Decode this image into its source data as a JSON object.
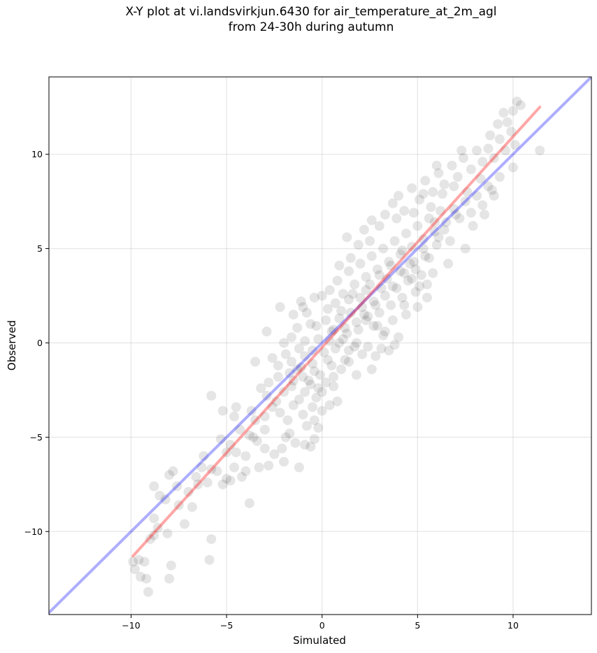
{
  "chart_data": {
    "type": "scatter",
    "title_line1": "X-Y plot at vi.landsvirkjun.6430 for air_temperature_at_2m_agl",
    "title_line2": "from 24-30h during autumn",
    "xlabel": "Simulated",
    "ylabel": "Observed",
    "xlim": [
      -14.3,
      14.1
    ],
    "ylim": [
      -14.4,
      14.1
    ],
    "x_ticks": [
      -10,
      -5,
      0,
      5,
      10
    ],
    "y_ticks": [
      -10,
      -5,
      0,
      5,
      10
    ],
    "x_tick_labels": [
      "−10",
      "−5",
      "0",
      "5",
      "10"
    ],
    "y_tick_labels": [
      "−10",
      "−5",
      "0",
      "5",
      "10"
    ],
    "grid": true,
    "identity_line": {
      "color": "#0000ff",
      "x": [
        -14.3,
        14.1
      ],
      "y": [
        -14.3,
        14.1
      ]
    },
    "fit_line": {
      "color": "#ff0000",
      "x": [
        -9.9,
        11.4
      ],
      "y": [
        -11.3,
        12.5
      ]
    },
    "points_color": "#000000",
    "points_alpha": 0.1,
    "points": [
      [
        -9.8,
        -12.0
      ],
      [
        -9.5,
        -12.4
      ],
      [
        -9.3,
        -11.6
      ],
      [
        -9.1,
        -13.2
      ],
      [
        -9.6,
        -11.5
      ],
      [
        -9.0,
        -10.4
      ],
      [
        -8.8,
        -10.2
      ],
      [
        -8.6,
        -9.8
      ],
      [
        -8.8,
        -9.3
      ],
      [
        -8.8,
        -7.6
      ],
      [
        -8.5,
        -8.1
      ],
      [
        -8.2,
        -8.3
      ],
      [
        -8.0,
        -7.0
      ],
      [
        -7.8,
        -6.8
      ],
      [
        -7.6,
        -7.6
      ],
      [
        -7.5,
        -8.6
      ],
      [
        -7.2,
        -9.6
      ],
      [
        -7.9,
        -11.8
      ],
      [
        -8.1,
        -10.1
      ],
      [
        -8.0,
        -12.5
      ],
      [
        -9.9,
        -11.6
      ],
      [
        -9.2,
        -12.5
      ],
      [
        -6.8,
        -8.7
      ],
      [
        -6.6,
        -7.1
      ],
      [
        -6.5,
        -7.5
      ],
      [
        -6.0,
        -7.4
      ],
      [
        -5.8,
        -6.7
      ],
      [
        -6.2,
        -6.0
      ],
      [
        -5.8,
        -10.4
      ],
      [
        -5.9,
        -11.5
      ],
      [
        -5.5,
        -6.8
      ],
      [
        -5.2,
        -7.5
      ],
      [
        -5.0,
        -7.2
      ],
      [
        -4.8,
        -7.3
      ],
      [
        -4.6,
        -6.6
      ],
      [
        -4.2,
        -7.1
      ],
      [
        -3.8,
        -8.5
      ],
      [
        -4.0,
        -6.0
      ],
      [
        -4.5,
        -5.8
      ],
      [
        -4.8,
        -5.4
      ],
      [
        -5.3,
        -5.1
      ],
      [
        -5.0,
        -5.8
      ],
      [
        -5.2,
        -3.6
      ],
      [
        -4.6,
        -3.9
      ],
      [
        -4.3,
        -4.6
      ],
      [
        -3.8,
        -4.9
      ],
      [
        -3.4,
        -5.2
      ],
      [
        -3.0,
        -5.6
      ],
      [
        -3.3,
        -6.6
      ],
      [
        -2.8,
        -6.5
      ],
      [
        -2.5,
        -5.9
      ],
      [
        -2.1,
        -5.6
      ],
      [
        -2.0,
        -6.3
      ],
      [
        -1.7,
        -4.8
      ],
      [
        -1.4,
        -5.3
      ],
      [
        -1.2,
        -6.6
      ],
      [
        -0.9,
        -5.4
      ],
      [
        -0.6,
        -5.5
      ],
      [
        -0.4,
        -5.1
      ],
      [
        -0.2,
        -4.5
      ],
      [
        -5.8,
        -2.8
      ],
      [
        -3.7,
        -3.6
      ],
      [
        -4.5,
        -3.4
      ],
      [
        -3.5,
        -4.1
      ],
      [
        -3.0,
        -3.9
      ],
      [
        -2.6,
        -3.4
      ],
      [
        -2.2,
        -3.7
      ],
      [
        -1.8,
        -4.1
      ],
      [
        -1.5,
        -3.3
      ],
      [
        -1.0,
        -3.8
      ],
      [
        -0.8,
        -4.4
      ],
      [
        -0.4,
        -4.1
      ],
      [
        0.0,
        -3.6
      ],
      [
        0.4,
        -3.3
      ],
      [
        0.8,
        -3.1
      ],
      [
        0.0,
        -2.6
      ],
      [
        -0.3,
        -2.9
      ],
      [
        -0.6,
        -2.2
      ],
      [
        -0.9,
        -2.6
      ],
      [
        -1.2,
        -3.0
      ],
      [
        -1.6,
        -2.3
      ],
      [
        -2.0,
        -2.6
      ],
      [
        -2.3,
        -1.8
      ],
      [
        -2.8,
        -2.1
      ],
      [
        -3.2,
        -2.4
      ],
      [
        -3.5,
        -1.0
      ],
      [
        -2.6,
        -0.8
      ],
      [
        -2.3,
        -1.2
      ],
      [
        -1.9,
        -0.6
      ],
      [
        -1.6,
        -1.0
      ],
      [
        -1.3,
        -1.4
      ],
      [
        -1.0,
        -1.8
      ],
      [
        -0.7,
        -2.0
      ],
      [
        -0.4,
        -1.5
      ],
      [
        -0.1,
        -1.7
      ],
      [
        0.2,
        -2.1
      ],
      [
        0.6,
        -1.8
      ],
      [
        1.0,
        -1.4
      ],
      [
        1.4,
        -1.0
      ],
      [
        1.8,
        -1.7
      ],
      [
        -2.0,
        0.0
      ],
      [
        -1.6,
        0.3
      ],
      [
        -1.2,
        -0.3
      ],
      [
        -0.9,
        0.1
      ],
      [
        -0.5,
        -0.4
      ],
      [
        -0.2,
        0.2
      ],
      [
        0.1,
        -0.5
      ],
      [
        0.4,
        0.1
      ],
      [
        0.7,
        -0.3
      ],
      [
        1.1,
        0.2
      ],
      [
        1.4,
        -0.4
      ],
      [
        1.8,
        0.0
      ],
      [
        2.1,
        -0.6
      ],
      [
        2.4,
        -0.2
      ],
      [
        2.8,
        -0.7
      ],
      [
        3.1,
        -0.3
      ],
      [
        3.3,
        0.6
      ],
      [
        3.5,
        -0.4
      ],
      [
        3.8,
        -0.1
      ],
      [
        2.6,
        -1.4
      ],
      [
        -2.9,
        0.6
      ],
      [
        -2.2,
        1.9
      ],
      [
        -1.5,
        1.5
      ],
      [
        -1.1,
        2.2
      ],
      [
        -0.8,
        1.6
      ],
      [
        -0.4,
        2.4
      ],
      [
        0.0,
        2.5
      ],
      [
        0.3,
        1.8
      ],
      [
        -0.6,
        1.0
      ],
      [
        -1.3,
        0.8
      ],
      [
        0.2,
        1.2
      ],
      [
        0.5,
        0.6
      ],
      [
        0.9,
        1.3
      ],
      [
        1.2,
        0.8
      ],
      [
        1.5,
        1.6
      ],
      [
        1.8,
        1.1
      ],
      [
        2.1,
        1.9
      ],
      [
        2.4,
        1.4
      ],
      [
        2.7,
        2.2
      ],
      [
        3.0,
        1.6
      ],
      [
        3.3,
        2.5
      ],
      [
        3.6,
        2.0
      ],
      [
        3.9,
        2.9
      ],
      [
        4.2,
        2.4
      ],
      [
        4.5,
        3.3
      ],
      [
        4.9,
        2.7
      ],
      [
        5.2,
        3.6
      ],
      [
        5.5,
        3.1
      ],
      [
        5.0,
        1.9
      ],
      [
        5.1,
        3.0
      ],
      [
        0.4,
        2.8
      ],
      [
        0.8,
        3.3
      ],
      [
        1.1,
        2.6
      ],
      [
        1.4,
        3.8
      ],
      [
        1.7,
        3.1
      ],
      [
        2.0,
        4.2
      ],
      [
        2.3,
        3.5
      ],
      [
        2.6,
        4.6
      ],
      [
        2.9,
        3.9
      ],
      [
        3.2,
        5.0
      ],
      [
        3.5,
        4.3
      ],
      [
        3.8,
        5.4
      ],
      [
        4.1,
        4.7
      ],
      [
        4.4,
        5.8
      ],
      [
        4.7,
        5.1
      ],
      [
        5.0,
        6.2
      ],
      [
        5.3,
        5.5
      ],
      [
        5.6,
        6.6
      ],
      [
        5.9,
        5.9
      ],
      [
        6.2,
        7.0
      ],
      [
        1.5,
        4.5
      ],
      [
        1.9,
        5.2
      ],
      [
        2.2,
        6.0
      ],
      [
        2.6,
        6.5
      ],
      [
        3.0,
        6.2
      ],
      [
        3.3,
        6.8
      ],
      [
        3.7,
        7.4
      ],
      [
        4.0,
        7.8
      ],
      [
        4.3,
        7.0
      ],
      [
        4.7,
        8.2
      ],
      [
        5.1,
        7.6
      ],
      [
        5.4,
        8.6
      ],
      [
        5.8,
        8.0
      ],
      [
        6.1,
        9.0
      ],
      [
        6.4,
        8.4
      ],
      [
        6.8,
        9.4
      ],
      [
        7.1,
        8.8
      ],
      [
        7.4,
        9.8
      ],
      [
        7.8,
        9.2
      ],
      [
        8.1,
        10.2
      ],
      [
        6.5,
        6.4
      ],
      [
        6.9,
        7.1
      ],
      [
        7.2,
        6.6
      ],
      [
        7.5,
        7.5
      ],
      [
        7.8,
        6.9
      ],
      [
        8.1,
        7.8
      ],
      [
        8.4,
        7.3
      ],
      [
        8.7,
        8.3
      ],
      [
        9.0,
        7.8
      ],
      [
        9.3,
        8.8
      ],
      [
        8.4,
        9.6
      ],
      [
        8.7,
        10.3
      ],
      [
        9.0,
        9.8
      ],
      [
        9.3,
        10.8
      ],
      [
        9.6,
        10.2
      ],
      [
        9.9,
        11.2
      ],
      [
        10.1,
        10.5
      ],
      [
        9.2,
        11.6
      ],
      [
        9.5,
        12.2
      ],
      [
        10.0,
        12.3
      ],
      [
        10.2,
        12.8
      ],
      [
        10.4,
        12.6
      ],
      [
        11.4,
        10.2
      ],
      [
        10.0,
        9.3
      ],
      [
        8.5,
        6.8
      ],
      [
        7.5,
        5.0
      ],
      [
        6.6,
        4.2
      ],
      [
        5.5,
        2.4
      ],
      [
        4.7,
        3.4
      ],
      [
        4.3,
        2.0
      ],
      [
        3.7,
        1.2
      ],
      [
        3.2,
        0.4
      ],
      [
        4.0,
        0.3
      ],
      [
        1.2,
        -0.9
      ],
      [
        0.5,
        -1.2
      ],
      [
        -0.9,
        -0.7
      ],
      [
        -1.5,
        -2.0
      ],
      [
        -2.4,
        -3.1
      ],
      [
        -3.0,
        -4.6
      ],
      [
        -3.6,
        -5.0
      ],
      [
        -1.9,
        -5.0
      ],
      [
        -0.5,
        -3.4
      ],
      [
        0.6,
        -2.3
      ],
      [
        1.7,
        -0.2
      ],
      [
        2.9,
        0.9
      ],
      [
        4.4,
        1.5
      ],
      [
        5.8,
        3.7
      ],
      [
        6.7,
        5.4
      ],
      [
        7.9,
        6.2
      ],
      [
        8.9,
        8.1
      ],
      [
        0.9,
        4.1
      ],
      [
        1.3,
        5.6
      ],
      [
        2.5,
        5.4
      ],
      [
        3.9,
        6.6
      ],
      [
        4.8,
        6.9
      ],
      [
        5.7,
        7.2
      ],
      [
        6.3,
        7.9
      ],
      [
        6.9,
        8.3
      ],
      [
        7.6,
        8.0
      ],
      [
        8.3,
        8.7
      ],
      [
        -1.0,
        1.9
      ],
      [
        -0.3,
        0.9
      ],
      [
        0.7,
        2.1
      ],
      [
        1.6,
        2.6
      ],
      [
        2.3,
        2.8
      ],
      [
        3.4,
        3.4
      ],
      [
        4.1,
        3.8
      ],
      [
        4.8,
        4.3
      ],
      [
        5.4,
        4.6
      ],
      [
        6.0,
        5.2
      ],
      [
        2.0,
        2.4
      ],
      [
        2.5,
        3.1
      ],
      [
        3.0,
        3.6
      ],
      [
        3.6,
        4.1
      ],
      [
        4.2,
        4.9
      ],
      [
        4.6,
        4.2
      ],
      [
        5.3,
        5.0
      ],
      [
        5.9,
        6.4
      ],
      [
        6.4,
        6.0
      ],
      [
        7.0,
        6.8
      ],
      [
        1.0,
        1.7
      ],
      [
        1.4,
        2.3
      ],
      [
        2.2,
        1.5
      ],
      [
        2.8,
        2.0
      ],
      [
        3.1,
        2.9
      ],
      [
        3.7,
        3.0
      ],
      [
        4.3,
        3.7
      ],
      [
        4.9,
        3.9
      ],
      [
        5.6,
        4.5
      ],
      [
        6.1,
        5.6
      ],
      [
        0.6,
        0.7
      ],
      [
        0.9,
        0.0
      ],
      [
        1.3,
        0.5
      ],
      [
        1.9,
        0.7
      ],
      [
        2.3,
        1.2
      ],
      [
        2.7,
        0.9
      ],
      [
        0.3,
        -0.9
      ],
      [
        -0.5,
        -1.1
      ],
      [
        -1.1,
        -1.3
      ],
      [
        -0.2,
        -2.4
      ],
      [
        -6.3,
        -6.6
      ],
      [
        -7.0,
        -7.9
      ],
      [
        -4.0,
        -6.8
      ],
      [
        -2.9,
        -2.8
      ],
      [
        -1.7,
        -1.6
      ],
      [
        7.3,
        10.2
      ],
      [
        6.0,
        9.4
      ],
      [
        5.3,
        7.9
      ],
      [
        8.8,
        11.0
      ],
      [
        9.7,
        11.7
      ]
    ]
  }
}
